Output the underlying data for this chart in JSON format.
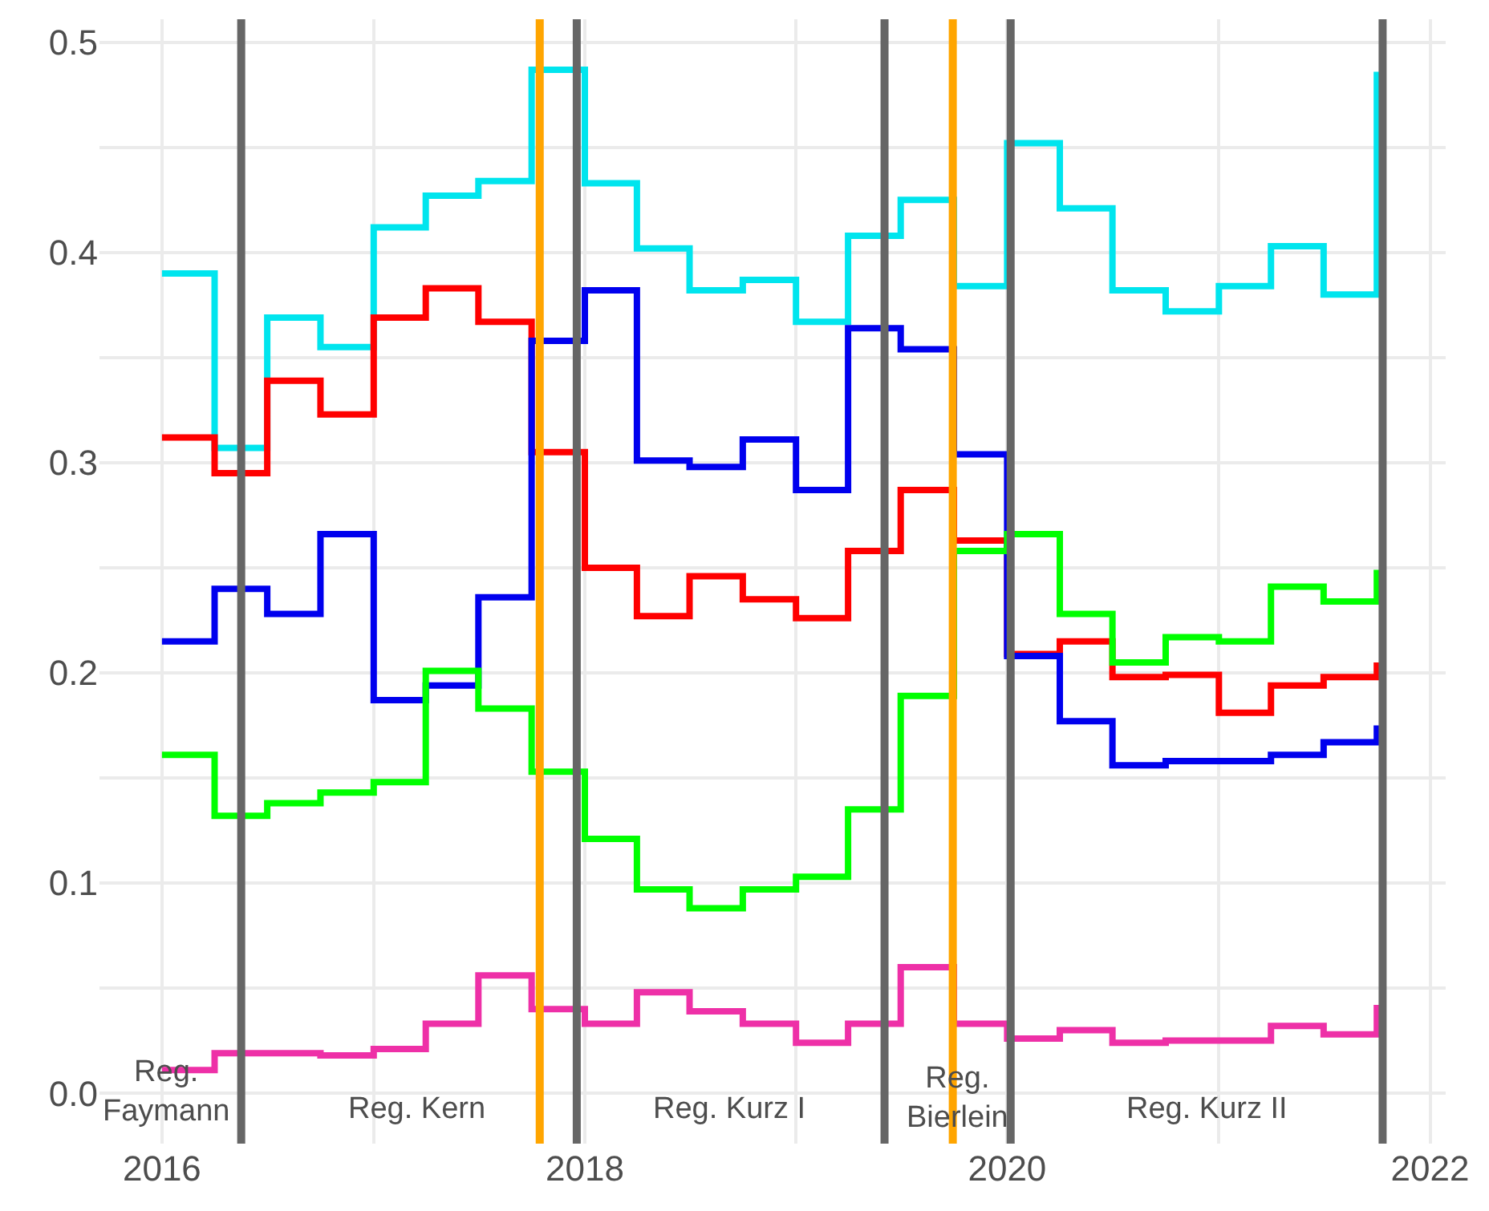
{
  "chart_data": {
    "type": "step",
    "x": [
      "2016-01",
      "2016-04",
      "2016-07",
      "2016-10",
      "2017-01",
      "2017-04",
      "2017-07",
      "2017-10",
      "2018-01",
      "2018-04",
      "2018-07",
      "2018-10",
      "2019-01",
      "2019-04",
      "2019-07",
      "2019-10",
      "2020-01",
      "2020-04",
      "2020-07",
      "2020-10",
      "2021-01",
      "2021-04",
      "2021-07",
      "2021-10"
    ],
    "series": [
      {
        "color": "#00e5ee",
        "values": [
          0.39,
          0.307,
          0.369,
          0.355,
          0.412,
          0.427,
          0.434,
          0.487,
          0.433,
          0.402,
          0.382,
          0.387,
          0.367,
          0.408,
          0.425,
          0.384,
          0.452,
          0.421,
          0.382,
          0.372,
          0.384,
          0.403,
          0.38,
          0.486
        ]
      },
      {
        "color": "#ff0000",
        "values": [
          0.312,
          0.295,
          0.339,
          0.323,
          0.369,
          0.383,
          0.367,
          0.305,
          0.25,
          0.227,
          0.246,
          0.235,
          0.226,
          0.258,
          0.287,
          0.263,
          0.209,
          0.215,
          0.198,
          0.199,
          0.181,
          0.194,
          0.198,
          0.205
        ]
      },
      {
        "color": "#0000ee",
        "values": [
          0.215,
          0.24,
          0.228,
          0.266,
          0.187,
          0.194,
          0.236,
          0.358,
          0.382,
          0.301,
          0.298,
          0.311,
          0.287,
          0.364,
          0.354,
          0.304,
          0.208,
          0.177,
          0.156,
          0.158,
          0.158,
          0.161,
          0.167,
          0.175
        ]
      },
      {
        "color": "#00ff00",
        "values": [
          0.161,
          0.132,
          0.138,
          0.143,
          0.148,
          0.201,
          0.183,
          0.153,
          0.121,
          0.097,
          0.088,
          0.097,
          0.103,
          0.135,
          0.189,
          0.258,
          0.266,
          0.228,
          0.205,
          0.217,
          0.215,
          0.241,
          0.234,
          0.249
        ]
      },
      {
        "color": "#ee30a7",
        "values": [
          0.011,
          0.019,
          0.019,
          0.018,
          0.021,
          0.033,
          0.056,
          0.04,
          0.033,
          0.048,
          0.039,
          0.033,
          0.024,
          0.033,
          0.06,
          0.033,
          0.026,
          0.03,
          0.024,
          0.025,
          0.025,
          0.032,
          0.028,
          0.042
        ]
      }
    ],
    "xlim": [
      "2015-09-15",
      "2022-01-28"
    ],
    "xticks": [
      {
        "value": "2016-01-01",
        "label": "2016"
      },
      {
        "value": "2017-01-01",
        "label": null
      },
      {
        "value": "2018-01-01",
        "label": "2018"
      },
      {
        "value": "2019-01-01",
        "label": null
      },
      {
        "value": "2020-01-01",
        "label": "2020"
      },
      {
        "value": "2021-01-01",
        "label": null
      },
      {
        "value": "2022-01-01",
        "label": "2022"
      }
    ],
    "ylim": [
      -0.024,
      0.511
    ],
    "yticks": [
      {
        "value": 0,
        "label": "0.0"
      },
      {
        "value": 0.05,
        "label": null
      },
      {
        "value": 0.1,
        "label": "0.1"
      },
      {
        "value": 0.15,
        "label": null
      },
      {
        "value": 0.2,
        "label": "0.2"
      },
      {
        "value": 0.25,
        "label": null
      },
      {
        "value": 0.3,
        "label": "0.3"
      },
      {
        "value": 0.35,
        "label": null
      },
      {
        "value": 0.4,
        "label": "0.4"
      },
      {
        "value": 0.45,
        "label": null
      },
      {
        "value": 0.5,
        "label": "0.5"
      }
    ],
    "ref_lines": [
      {
        "axis": "x",
        "value": "2016-05-17",
        "color": "#666666"
      },
      {
        "axis": "x",
        "value": "2017-10-15",
        "color": "#ffa500"
      },
      {
        "axis": "x",
        "value": "2017-12-18",
        "color": "#666666"
      },
      {
        "axis": "x",
        "value": "2019-06-03",
        "color": "#666666"
      },
      {
        "axis": "x",
        "value": "2019-09-29",
        "color": "#ffa500"
      },
      {
        "axis": "x",
        "value": "2020-01-07",
        "color": "#666666"
      },
      {
        "axis": "x",
        "value": "2021-10-11",
        "color": "#666666"
      }
    ],
    "annotations": [
      "Reg.\nFaymann",
      "Reg. Kern",
      "Reg. Kurz I",
      "Reg.\nBierlein",
      "Reg. Kurz II"
    ],
    "grid": true,
    "marker": "none",
    "line_style": "solid"
  }
}
